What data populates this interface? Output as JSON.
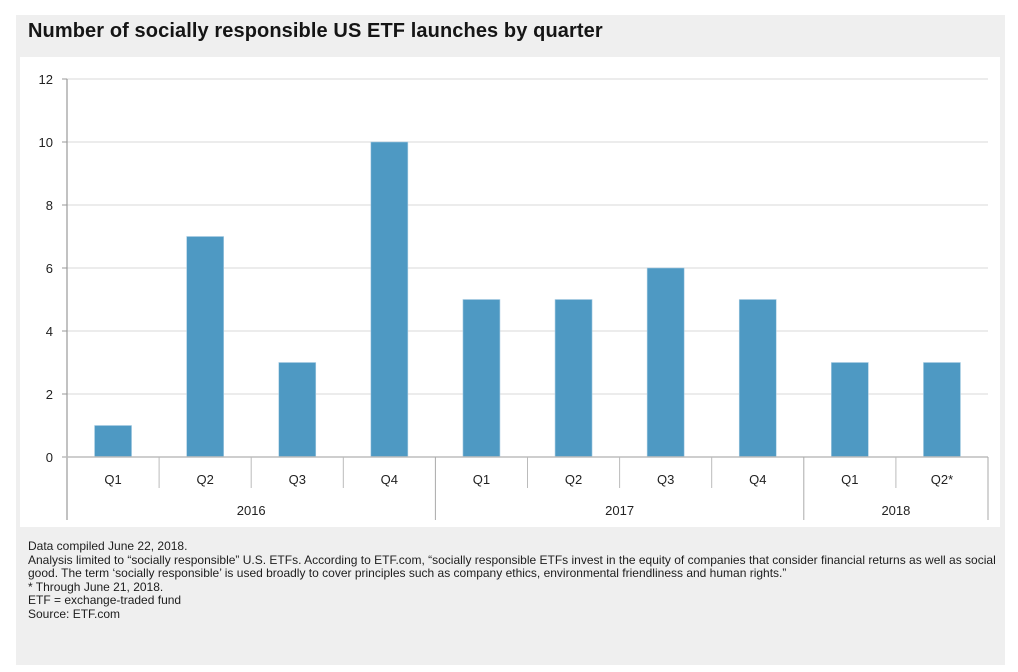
{
  "chart_data": {
    "type": "bar",
    "title": "Number of socially responsible US ETF launches by quarter",
    "xlabel": "",
    "ylabel": "",
    "ylim": [
      0,
      12
    ],
    "yticks": [
      0,
      2,
      4,
      6,
      8,
      10,
      12
    ],
    "grid": true,
    "legend": "none",
    "bar_color": "#4e99c3",
    "categories": [
      "Q1",
      "Q2",
      "Q3",
      "Q4",
      "Q1",
      "Q2",
      "Q3",
      "Q4",
      "Q1",
      "Q2*"
    ],
    "groups": [
      {
        "label": "2016",
        "count": 4
      },
      {
        "label": "2017",
        "count": 4
      },
      {
        "label": "2018",
        "count": 2
      }
    ],
    "values": [
      1,
      7,
      3,
      10,
      5,
      5,
      6,
      5,
      3,
      3
    ]
  },
  "notes": {
    "compiled": "Data compiled June 22, 2018.",
    "analysis": "Analysis limited to “socially responsible” U.S. ETFs. According to ETF.com, “socially responsible ETFs invest in the equity of companies that consider financial returns as well as social good. The term ‘socially responsible’ is used broadly to cover principles such as company ethics, environmental friendliness and human rights.”",
    "through": "* Through June 21, 2018.",
    "abbrev": "ETF = exchange-traded fund",
    "source": "Source: ETF.com"
  }
}
